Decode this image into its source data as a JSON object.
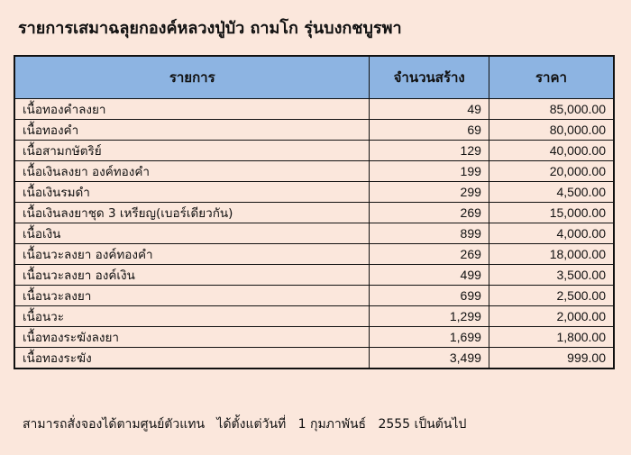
{
  "title": "รายการเสมาฉลุยกองค์หลวงปู่บัว ถามโก รุ่นบงกชบูรพา",
  "table": {
    "headers": [
      "รายการ",
      "จำนวนสร้าง",
      "ราคา"
    ],
    "rows": [
      {
        "item": "เนื้อทองคำลงยา",
        "quantity": "49",
        "price": "85,000.00"
      },
      {
        "item": "เนื้อทองคำ",
        "quantity": "69",
        "price": "80,000.00"
      },
      {
        "item": "เนื้อสามกษัตริย์",
        "quantity": "129",
        "price": "40,000.00"
      },
      {
        "item": "เนื้อเงินลงยา   องค์ทองคำ",
        "quantity": "199",
        "price": "20,000.00"
      },
      {
        "item": "เนื้อเงินรมดำ",
        "quantity": "299",
        "price": "4,500.00"
      },
      {
        "item": "เนื้อเงินลงยาชุด   3 เหรียญ(เบอร์เดียวกัน)",
        "quantity": "269",
        "price": "15,000.00"
      },
      {
        "item": "เนื้อเงิน",
        "quantity": "899",
        "price": "4,000.00"
      },
      {
        "item": "เนื้อนวะลงยา   องค์ทองคำ",
        "quantity": "269",
        "price": "18,000.00"
      },
      {
        "item": "เนื้อนวะลงยา   องค์เงิน",
        "quantity": "499",
        "price": "3,500.00"
      },
      {
        "item": "เนื้อนวะลงยา",
        "quantity": "699",
        "price": "2,500.00"
      },
      {
        "item": "เนื้อนวะ",
        "quantity": "1,299",
        "price": "2,000.00"
      },
      {
        "item": "เนื้อทองระฆังลงยา",
        "quantity": "1,699",
        "price": "1,800.00"
      },
      {
        "item": "เนื้อทองระฆัง",
        "quantity": "3,499",
        "price": "999.00"
      }
    ]
  },
  "footer": "สามารถสั่งจองได้ตามศูนย์ตัวแทน   ได้ตั้งแต่วันที่   1 กุมภาพันธ์   2555 เป็นต้นไป",
  "colors": {
    "background": "#fbe7dc",
    "header": "#8db4e2"
  }
}
